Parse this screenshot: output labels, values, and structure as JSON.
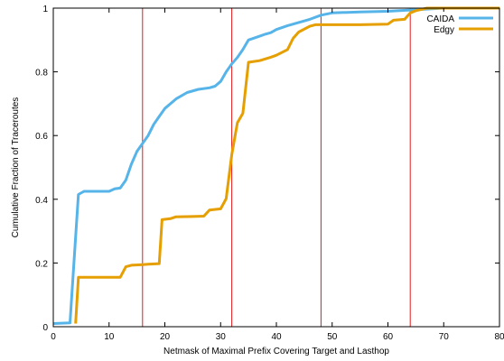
{
  "chart_data": {
    "type": "line",
    "xlabel": "Netmask of Maximal Prefix Covering Target and Lasthop",
    "ylabel": "Cumulative Fraction of Traceroutes",
    "xlim": [
      0,
      80
    ],
    "ylim": [
      0,
      1
    ],
    "x_ticks": [
      "0",
      "10",
      "20",
      "30",
      "40",
      "50",
      "60",
      "70",
      "80"
    ],
    "y_ticks": [
      "0",
      "0.2",
      "0.4",
      "0.6",
      "0.8",
      "1"
    ],
    "grid": false,
    "legend_position": "top-right",
    "reference_lines": {
      "x": [
        16,
        32,
        48,
        64
      ],
      "color": "#e41a1c"
    },
    "series": [
      {
        "name": "CAIDA",
        "color": "#56b4e9",
        "points": [
          [
            0,
            0.01
          ],
          [
            3,
            0.012
          ],
          [
            4.5,
            0.415
          ],
          [
            5.5,
            0.425
          ],
          [
            8,
            0.425
          ],
          [
            10,
            0.425
          ],
          [
            11,
            0.433
          ],
          [
            12,
            0.435
          ],
          [
            13,
            0.46
          ],
          [
            14,
            0.51
          ],
          [
            15,
            0.55
          ],
          [
            16,
            0.575
          ],
          [
            17,
            0.6
          ],
          [
            18,
            0.635
          ],
          [
            19,
            0.66
          ],
          [
            20,
            0.685
          ],
          [
            22,
            0.715
          ],
          [
            24,
            0.735
          ],
          [
            26,
            0.745
          ],
          [
            28,
            0.75
          ],
          [
            29,
            0.755
          ],
          [
            30,
            0.77
          ],
          [
            31,
            0.8
          ],
          [
            32,
            0.825
          ],
          [
            33,
            0.845
          ],
          [
            34,
            0.87
          ],
          [
            35,
            0.9
          ],
          [
            37,
            0.912
          ],
          [
            38,
            0.918
          ],
          [
            39,
            0.923
          ],
          [
            40,
            0.933
          ],
          [
            42,
            0.945
          ],
          [
            44,
            0.955
          ],
          [
            46,
            0.965
          ],
          [
            48,
            0.978
          ],
          [
            50,
            0.985
          ],
          [
            55,
            0.988
          ],
          [
            60,
            0.99
          ],
          [
            65,
            0.995
          ],
          [
            70,
            1.0
          ],
          [
            80,
            1.0
          ]
        ]
      },
      {
        "name": "Edgy",
        "color": "#e69f00",
        "points": [
          [
            4,
            0.01
          ],
          [
            4.5,
            0.155
          ],
          [
            8,
            0.155
          ],
          [
            12,
            0.155
          ],
          [
            13,
            0.188
          ],
          [
            14,
            0.193
          ],
          [
            16,
            0.195
          ],
          [
            17,
            0.196
          ],
          [
            19,
            0.198
          ],
          [
            19.5,
            0.336
          ],
          [
            21,
            0.339
          ],
          [
            22,
            0.345
          ],
          [
            25,
            0.346
          ],
          [
            27,
            0.347
          ],
          [
            28,
            0.366
          ],
          [
            30,
            0.37
          ],
          [
            31,
            0.402
          ],
          [
            32,
            0.54
          ],
          [
            33,
            0.64
          ],
          [
            34,
            0.67
          ],
          [
            35,
            0.83
          ],
          [
            37,
            0.835
          ],
          [
            39,
            0.846
          ],
          [
            40,
            0.852
          ],
          [
            42,
            0.87
          ],
          [
            43,
            0.905
          ],
          [
            44,
            0.925
          ],
          [
            46,
            0.943
          ],
          [
            47,
            0.948
          ],
          [
            50,
            0.948
          ],
          [
            55,
            0.948
          ],
          [
            60,
            0.95
          ],
          [
            61,
            0.962
          ],
          [
            63,
            0.965
          ],
          [
            64,
            0.985
          ],
          [
            65,
            0.992
          ],
          [
            67,
            1.0
          ],
          [
            80,
            1.0
          ]
        ]
      }
    ]
  }
}
